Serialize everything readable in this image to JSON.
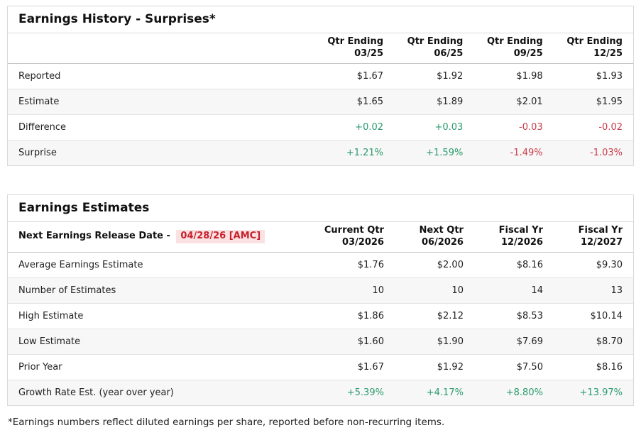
{
  "colors": {
    "positive": "#2a9a6e",
    "negative": "#c93a4a",
    "alert_red": "#c7202c",
    "alert_bg": "#fbe2e2"
  },
  "earnings_history": {
    "title": "Earnings History - Surprises*",
    "columns": [
      {
        "line1": "Qtr Ending",
        "line2": "03/25"
      },
      {
        "line1": "Qtr Ending",
        "line2": "06/25"
      },
      {
        "line1": "Qtr Ending",
        "line2": "09/25"
      },
      {
        "line1": "Qtr Ending",
        "line2": "12/25"
      }
    ],
    "rows": [
      {
        "label": "Reported",
        "values": [
          "$1.67",
          "$1.92",
          "$1.98",
          "$1.93"
        ]
      },
      {
        "label": "Estimate",
        "values": [
          "$1.65",
          "$1.89",
          "$2.01",
          "$1.95"
        ]
      },
      {
        "label": "Difference",
        "values": [
          "+0.02",
          "+0.03",
          "-0.03",
          "-0.02"
        ]
      },
      {
        "label": "Surprise",
        "values": [
          "+1.21%",
          "+1.59%",
          "-1.49%",
          "-1.03%"
        ]
      }
    ]
  },
  "earnings_estimates": {
    "title": "Earnings Estimates",
    "release_label": "Next Earnings Release Date -",
    "release_date": "04/28/26 [AMC]",
    "columns": [
      {
        "line1": "Current Qtr",
        "line2": "03/2026"
      },
      {
        "line1": "Next Qtr",
        "line2": "06/2026"
      },
      {
        "line1": "Fiscal Yr",
        "line2": "12/2026"
      },
      {
        "line1": "Fiscal Yr",
        "line2": "12/2027"
      }
    ],
    "rows": [
      {
        "label": "Average Earnings Estimate",
        "values": [
          "$1.76",
          "$2.00",
          "$8.16",
          "$9.30"
        ]
      },
      {
        "label": "Number of Estimates",
        "values": [
          "10",
          "10",
          "14",
          "13"
        ]
      },
      {
        "label": "High Estimate",
        "values": [
          "$1.86",
          "$2.12",
          "$8.53",
          "$10.14"
        ]
      },
      {
        "label": "Low Estimate",
        "values": [
          "$1.60",
          "$1.90",
          "$7.69",
          "$8.70"
        ]
      },
      {
        "label": "Prior Year",
        "values": [
          "$1.67",
          "$1.92",
          "$7.50",
          "$8.16"
        ]
      },
      {
        "label": "Growth Rate Est. (year over year)",
        "values": [
          "+5.39%",
          "+4.17%",
          "+8.80%",
          "+13.97%"
        ]
      }
    ]
  },
  "page": {
    "footnote": "*Earnings numbers reflect diluted earnings per share, reported before non-recurring items."
  }
}
